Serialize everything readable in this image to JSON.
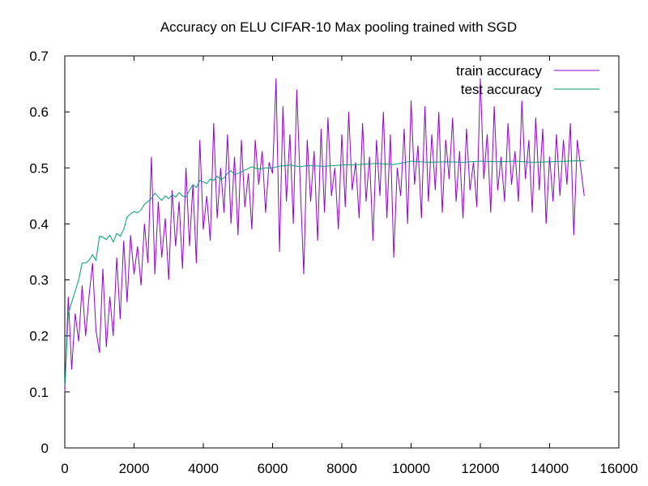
{
  "chart_data": {
    "type": "line",
    "title": "Accuracy on ELU CIFAR-10 Max pooling trained with SGD",
    "xlabel": "",
    "ylabel": "",
    "xlim": [
      0,
      16000
    ],
    "ylim": [
      0,
      0.7
    ],
    "xticks": [
      "0",
      "2000",
      "4000",
      "6000",
      "8000",
      "10000",
      "12000",
      "14000",
      "16000"
    ],
    "yticks": [
      "0",
      "0.1",
      "0.2",
      "0.3",
      "0.4",
      "0.5",
      "0.6",
      "0.7"
    ],
    "grid": false,
    "legend_position": "top-right",
    "series": [
      {
        "name": "train accuracy",
        "color": "#9400d3",
        "x": [
          0,
          100,
          200,
          300,
          400,
          500,
          600,
          700,
          800,
          900,
          1000,
          1100,
          1200,
          1300,
          1400,
          1500,
          1600,
          1700,
          1800,
          1900,
          2000,
          2100,
          2200,
          2300,
          2400,
          2500,
          2600,
          2700,
          2800,
          2900,
          3000,
          3100,
          3200,
          3300,
          3400,
          3500,
          3600,
          3700,
          3800,
          3900,
          4000,
          4100,
          4200,
          4300,
          4400,
          4500,
          4600,
          4700,
          4800,
          4900,
          5000,
          5100,
          5200,
          5300,
          5400,
          5500,
          5600,
          5700,
          5800,
          5900,
          6000,
          6100,
          6200,
          6300,
          6400,
          6500,
          6600,
          6700,
          6800,
          6900,
          7000,
          7100,
          7200,
          7300,
          7400,
          7500,
          7600,
          7700,
          7800,
          7900,
          8000,
          8100,
          8200,
          8300,
          8400,
          8500,
          8600,
          8700,
          8800,
          8900,
          9000,
          9100,
          9200,
          9300,
          9400,
          9500,
          9600,
          9700,
          9800,
          9900,
          10000,
          10100,
          10200,
          10300,
          10400,
          10500,
          10600,
          10700,
          10800,
          10900,
          11000,
          11100,
          11200,
          11300,
          11400,
          11500,
          11600,
          11700,
          11800,
          11900,
          12000,
          12100,
          12200,
          12300,
          12400,
          12500,
          12600,
          12700,
          12800,
          12900,
          13000,
          13100,
          13200,
          13300,
          13400,
          13500,
          13600,
          13700,
          13800,
          13900,
          14000,
          14100,
          14200,
          14300,
          14400,
          14500,
          14600,
          14700,
          14800,
          14900,
          15000
        ],
        "y": [
          0.1,
          0.27,
          0.14,
          0.24,
          0.19,
          0.29,
          0.2,
          0.27,
          0.33,
          0.21,
          0.17,
          0.32,
          0.18,
          0.27,
          0.2,
          0.34,
          0.23,
          0.37,
          0.26,
          0.38,
          0.31,
          0.36,
          0.29,
          0.4,
          0.33,
          0.52,
          0.31,
          0.44,
          0.34,
          0.41,
          0.3,
          0.46,
          0.36,
          0.44,
          0.32,
          0.5,
          0.36,
          0.47,
          0.33,
          0.55,
          0.39,
          0.45,
          0.37,
          0.58,
          0.41,
          0.5,
          0.42,
          0.56,
          0.4,
          0.52,
          0.38,
          0.55,
          0.43,
          0.49,
          0.39,
          0.55,
          0.47,
          0.53,
          0.42,
          0.51,
          0.49,
          0.66,
          0.35,
          0.61,
          0.44,
          0.56,
          0.4,
          0.64,
          0.47,
          0.31,
          0.55,
          0.44,
          0.53,
          0.37,
          0.57,
          0.42,
          0.59,
          0.45,
          0.5,
          0.39,
          0.56,
          0.43,
          0.6,
          0.46,
          0.51,
          0.41,
          0.58,
          0.44,
          0.52,
          0.37,
          0.55,
          0.45,
          0.6,
          0.41,
          0.56,
          0.34,
          0.5,
          0.45,
          0.57,
          0.4,
          0.62,
          0.47,
          0.54,
          0.41,
          0.61,
          0.44,
          0.56,
          0.46,
          0.6,
          0.42,
          0.55,
          0.48,
          0.59,
          0.44,
          0.53,
          0.41,
          0.57,
          0.46,
          0.51,
          0.43,
          0.66,
          0.48,
          0.56,
          0.42,
          0.61,
          0.46,
          0.52,
          0.44,
          0.58,
          0.47,
          0.53,
          0.44,
          0.62,
          0.48,
          0.55,
          0.42,
          0.59,
          0.46,
          0.57,
          0.4,
          0.52,
          0.44,
          0.56,
          0.45,
          0.55,
          0.47,
          0.58,
          0.38,
          0.55,
          0.5,
          0.45
        ]
      },
      {
        "name": "test accuracy",
        "color": "#009e73",
        "x": [
          0,
          100,
          200,
          300,
          400,
          500,
          600,
          700,
          800,
          900,
          1000,
          1100,
          1200,
          1300,
          1400,
          1500,
          1600,
          1700,
          1800,
          1900,
          2000,
          2100,
          2200,
          2300,
          2400,
          2500,
          2600,
          2700,
          2800,
          2900,
          3000,
          3100,
          3200,
          3300,
          3400,
          3500,
          3600,
          3700,
          3800,
          3900,
          4000,
          4100,
          4200,
          4300,
          4400,
          4500,
          4600,
          4700,
          4800,
          4900,
          5000,
          5200,
          5400,
          5600,
          5800,
          6000,
          6200,
          6500,
          6800,
          7000,
          7500,
          8000,
          8500,
          9000,
          9500,
          10000,
          10500,
          11000,
          11500,
          12000,
          12500,
          13000,
          13500,
          14000,
          14500,
          15000
        ],
        "y": [
          0.11,
          0.24,
          0.26,
          0.28,
          0.3,
          0.33,
          0.33,
          0.335,
          0.345,
          0.335,
          0.378,
          0.376,
          0.372,
          0.38,
          0.368,
          0.383,
          0.378,
          0.39,
          0.412,
          0.418,
          0.422,
          0.42,
          0.425,
          0.435,
          0.44,
          0.445,
          0.455,
          0.448,
          0.442,
          0.45,
          0.445,
          0.452,
          0.448,
          0.456,
          0.45,
          0.448,
          0.46,
          0.47,
          0.465,
          0.478,
          0.475,
          0.472,
          0.48,
          0.478,
          0.485,
          0.48,
          0.482,
          0.49,
          0.495,
          0.488,
          0.49,
          0.496,
          0.502,
          0.498,
          0.5,
          0.5,
          0.503,
          0.505,
          0.502,
          0.504,
          0.503,
          0.505,
          0.506,
          0.508,
          0.506,
          0.512,
          0.51,
          0.511,
          0.51,
          0.512,
          0.511,
          0.512,
          0.51,
          0.511,
          0.512,
          0.513
        ]
      }
    ]
  }
}
